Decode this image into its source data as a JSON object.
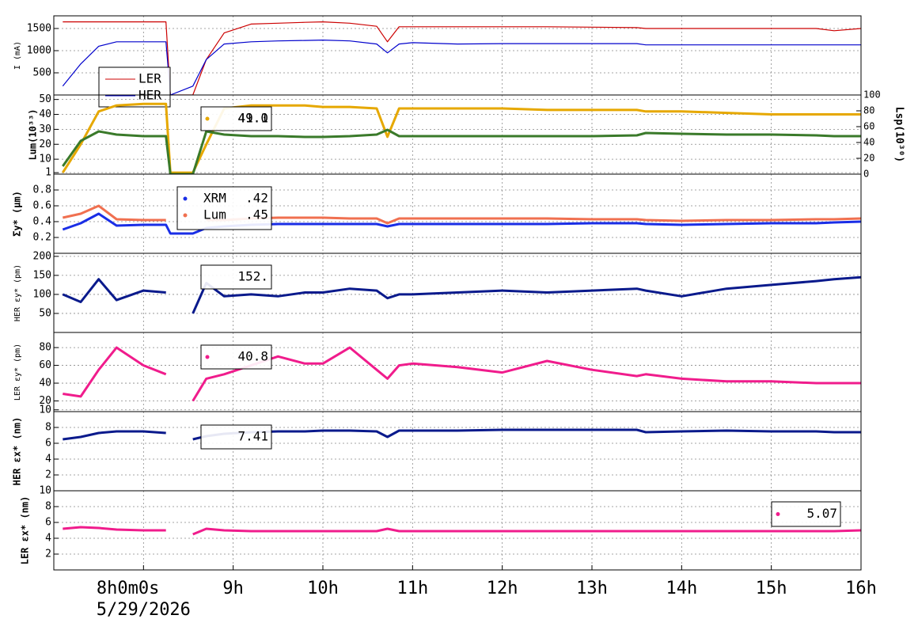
{
  "chart_data": [
    {
      "type": "line",
      "ylabel": "I (mA)",
      "xlim": [
        7,
        16
      ],
      "ylim": [
        0,
        1786
      ],
      "yticks": [
        500,
        1000,
        1500
      ],
      "grid": true,
      "legend_marker": "line",
      "x": [
        7.1,
        7.3,
        7.5,
        7.7,
        8.0,
        8.25,
        8.3,
        8.55,
        8.7,
        8.9,
        9.2,
        9.5,
        9.8,
        10.0,
        10.3,
        10.6,
        10.72,
        10.85,
        11.0,
        11.5,
        12.0,
        12.5,
        13.0,
        13.5,
        13.6,
        14.0,
        14.5,
        15.0,
        15.5,
        15.7,
        16.0
      ],
      "series": [
        {
          "name": "LER",
          "color": "#cc0000",
          "values": [
            1650,
            1650,
            1650,
            1650,
            1650,
            1650,
            0,
            0,
            800,
            1400,
            1600,
            1620,
            1640,
            1650,
            1620,
            1550,
            1200,
            1540,
            1540,
            1540,
            1540,
            1540,
            1530,
            1520,
            1500,
            1500,
            1500,
            1500,
            1500,
            1450,
            1500
          ]
        },
        {
          "name": "HER",
          "color": "#0000cc",
          "values": [
            200,
            700,
            1100,
            1200,
            1200,
            1200,
            0,
            200,
            800,
            1150,
            1200,
            1220,
            1230,
            1240,
            1220,
            1150,
            950,
            1150,
            1180,
            1150,
            1160,
            1160,
            1160,
            1160,
            1130,
            1130,
            1130,
            1130,
            1130,
            1130,
            1130
          ]
        }
      ]
    },
    {
      "type": "line",
      "ylabel": "Lum(10³³)",
      "y2label": "Lsp(10³⁰)",
      "xlim": [
        7,
        16
      ],
      "ylim": [
        0,
        53
      ],
      "yticks": [
        1,
        10,
        20,
        30,
        40,
        50
      ],
      "y2lim": [
        0,
        100
      ],
      "y2ticks": [
        0,
        20,
        40,
        60,
        80,
        100
      ],
      "grid": true,
      "legend_marker": "dot",
      "readouts": [
        "41.1",
        "49.0"
      ],
      "x": [
        7.1,
        7.3,
        7.5,
        7.7,
        8.0,
        8.25,
        8.3,
        8.55,
        8.7,
        8.9,
        9.2,
        9.5,
        9.8,
        10.0,
        10.3,
        10.6,
        10.72,
        10.85,
        11.0,
        11.5,
        12.0,
        12.5,
        13.0,
        13.5,
        13.6,
        14.0,
        14.5,
        15.0,
        15.5,
        15.7,
        16.0
      ],
      "series": [
        {
          "color": "#e6a800",
          "values": [
            1,
            20,
            42,
            46,
            47,
            47,
            1,
            1,
            20,
            44,
            46,
            46,
            46,
            45,
            45,
            44,
            25,
            44,
            44,
            44,
            44,
            43,
            43,
            43,
            42,
            42,
            41,
            40,
            40,
            40,
            40
          ]
        },
        {
          "color": "#3a7a2a",
          "axis": "y2",
          "values": [
            10,
            42,
            54,
            50,
            48,
            48,
            0,
            0,
            54,
            50,
            48,
            48,
            47,
            47,
            48,
            50,
            56,
            48,
            48,
            48,
            48,
            48,
            48,
            49,
            52,
            51,
            50,
            50,
            49,
            48,
            48
          ]
        }
      ]
    },
    {
      "type": "line",
      "ylabel": "Σy* (μm)",
      "xlim": [
        7,
        16
      ],
      "ylim": [
        0,
        1
      ],
      "yticks": [
        0.2,
        0.4,
        0.6,
        0.8
      ],
      "grid": true,
      "legend_marker": "dot",
      "readouts": [
        ".42",
        ".45"
      ],
      "x": [
        7.1,
        7.3,
        7.5,
        7.7,
        8.0,
        8.25,
        8.3,
        8.55,
        8.7,
        8.9,
        9.2,
        9.5,
        9.8,
        10.0,
        10.3,
        10.6,
        10.72,
        10.85,
        11.0,
        11.5,
        12.0,
        12.5,
        13.0,
        13.5,
        13.6,
        14.0,
        14.5,
        15.0,
        15.5,
        15.7,
        16.0
      ],
      "series": [
        {
          "name": "XRM",
          "color": "#1a2ee6",
          "values": [
            0.3,
            0.38,
            0.5,
            0.35,
            0.36,
            0.36,
            0.25,
            0.25,
            0.32,
            0.34,
            0.36,
            0.37,
            0.37,
            0.37,
            0.37,
            0.37,
            0.34,
            0.37,
            0.37,
            0.37,
            0.37,
            0.37,
            0.38,
            0.38,
            0.37,
            0.36,
            0.37,
            0.38,
            0.38,
            0.39,
            0.4
          ]
        },
        {
          "name": "Lum",
          "color": "#f07050",
          "values": [
            0.45,
            0.5,
            0.6,
            0.43,
            0.42,
            0.42,
            null,
            null,
            0.42,
            0.42,
            0.44,
            0.45,
            0.45,
            0.45,
            0.44,
            0.44,
            0.38,
            0.44,
            0.44,
            0.44,
            0.44,
            0.44,
            0.43,
            0.43,
            0.42,
            0.41,
            0.42,
            0.42,
            0.43,
            0.43,
            0.44
          ]
        }
      ]
    },
    {
      "type": "line",
      "ylabel": "HER εy* (pm)",
      "xlim": [
        7,
        16
      ],
      "ylim": [
        0,
        208
      ],
      "yticks": [
        50,
        100,
        150,
        200
      ],
      "grid": true,
      "legend_marker": "none",
      "readouts": [
        "152."
      ],
      "x": [
        7.1,
        7.3,
        7.5,
        7.7,
        8.0,
        8.25,
        8.3,
        8.55,
        8.7,
        8.9,
        9.2,
        9.5,
        9.8,
        10.0,
        10.3,
        10.6,
        10.72,
        10.85,
        11.0,
        11.5,
        12.0,
        12.5,
        13.0,
        13.5,
        13.6,
        14.0,
        14.5,
        15.0,
        15.5,
        15.7,
        16.0
      ],
      "series": [
        {
          "color": "#0a1a8c",
          "values": [
            100,
            80,
            140,
            85,
            110,
            105,
            null,
            50,
            130,
            95,
            100,
            95,
            105,
            105,
            115,
            110,
            90,
            100,
            100,
            105,
            110,
            105,
            110,
            115,
            110,
            95,
            115,
            125,
            135,
            140,
            145
          ]
        }
      ]
    },
    {
      "type": "line",
      "ylabel": "LER εy* (pm)",
      "xlim": [
        7,
        16
      ],
      "ylim": [
        8,
        97
      ],
      "yticks": [
        10,
        20,
        40,
        60,
        80
      ],
      "grid": true,
      "legend_marker": "dot",
      "readouts": [
        "40.8"
      ],
      "x": [
        7.1,
        7.3,
        7.5,
        7.7,
        8.0,
        8.25,
        8.3,
        8.55,
        8.7,
        8.9,
        9.2,
        9.5,
        9.8,
        10.0,
        10.3,
        10.6,
        10.72,
        10.85,
        11.0,
        11.5,
        12.0,
        12.5,
        13.0,
        13.5,
        13.6,
        14.0,
        14.5,
        15.0,
        15.5,
        15.7,
        16.0
      ],
      "series": [
        {
          "color": "#f01c8c",
          "values": [
            28,
            25,
            55,
            80,
            60,
            50,
            null,
            20,
            45,
            50,
            60,
            70,
            62,
            62,
            80,
            55,
            45,
            60,
            62,
            58,
            52,
            65,
            55,
            48,
            50,
            45,
            42,
            42,
            40,
            40,
            40
          ]
        }
      ]
    },
    {
      "type": "line",
      "ylabel": "HER εx* (nm)",
      "xlim": [
        7,
        16
      ],
      "ylim": [
        0,
        10
      ],
      "yticks": [
        2,
        4,
        6,
        8
      ],
      "grid": true,
      "legend_marker": "none",
      "readouts": [
        "7.41"
      ],
      "x": [
        7.1,
        7.3,
        7.5,
        7.7,
        8.0,
        8.25,
        8.3,
        8.55,
        8.7,
        8.9,
        9.2,
        9.5,
        9.8,
        10.0,
        10.3,
        10.6,
        10.72,
        10.85,
        11.0,
        11.5,
        12.0,
        12.5,
        13.0,
        13.5,
        13.6,
        14.0,
        14.5,
        15.0,
        15.5,
        15.7,
        16.0
      ],
      "series": [
        {
          "color": "#0a1a8c",
          "values": [
            6.5,
            6.8,
            7.3,
            7.5,
            7.5,
            7.3,
            null,
            6.5,
            6.9,
            7.2,
            7.4,
            7.5,
            7.5,
            7.6,
            7.6,
            7.5,
            6.8,
            7.6,
            7.6,
            7.6,
            7.7,
            7.7,
            7.7,
            7.7,
            7.4,
            7.5,
            7.6,
            7.5,
            7.5,
            7.4,
            7.4
          ]
        }
      ]
    },
    {
      "type": "line",
      "ylabel": "LER εx* (nm)",
      "xlim": [
        7,
        16
      ],
      "ylim": [
        0,
        10
      ],
      "yticks": [
        2,
        4,
        6,
        8,
        10
      ],
      "grid": true,
      "legend_marker": "dot",
      "readouts": [
        "5.07"
      ],
      "xdate": "5/29/2026",
      "xticks": [
        {
          "value": 8,
          "label": "8h0m0s"
        },
        {
          "value": 9,
          "label": "9h"
        },
        {
          "value": 10,
          "label": "10h"
        },
        {
          "value": 11,
          "label": "11h"
        },
        {
          "value": 12,
          "label": "12h"
        },
        {
          "value": 13,
          "label": "13h"
        },
        {
          "value": 14,
          "label": "14h"
        },
        {
          "value": 15,
          "label": "15h"
        },
        {
          "value": 16,
          "label": "16h"
        }
      ],
      "x": [
        7.1,
        7.3,
        7.5,
        7.7,
        8.0,
        8.25,
        8.3,
        8.55,
        8.7,
        8.9,
        9.2,
        9.5,
        9.8,
        10.0,
        10.3,
        10.6,
        10.72,
        10.85,
        11.0,
        11.5,
        12.0,
        12.5,
        13.0,
        13.5,
        13.6,
        14.0,
        14.5,
        15.0,
        15.5,
        15.7,
        16.0
      ],
      "series": [
        {
          "color": "#f01c8c",
          "values": [
            5.2,
            5.4,
            5.3,
            5.1,
            5.0,
            5.0,
            null,
            4.5,
            5.2,
            5.0,
            4.9,
            4.9,
            4.9,
            4.9,
            4.9,
            4.9,
            5.2,
            4.9,
            4.9,
            4.9,
            4.9,
            4.9,
            4.9,
            4.9,
            4.9,
            4.9,
            4.9,
            4.9,
            4.9,
            4.9,
            5.0
          ]
        }
      ]
    }
  ]
}
